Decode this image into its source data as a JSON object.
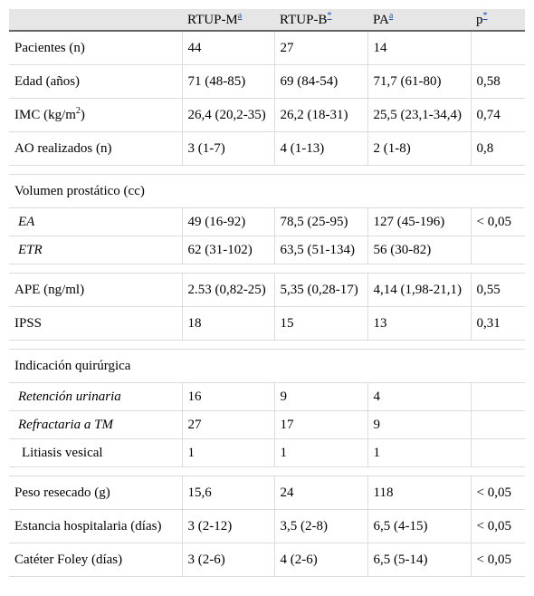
{
  "header": {
    "col1": "",
    "col2": "RTUP-M",
    "col2_note": "a",
    "col3": "RTUP-B",
    "col3_note": "*",
    "col4": "PA",
    "col4_note": "a",
    "col5": "p",
    "col5_note": "*"
  },
  "rows": {
    "pacientes": {
      "label": "Pacientes (n)",
      "m": "44",
      "b": "27",
      "pa": "14",
      "p": ""
    },
    "edad": {
      "label": "Edad (años)",
      "m": "71 (48-85)",
      "b": "69 (84-54)",
      "pa": "71,7 (61-80)",
      "p": "0,58"
    },
    "imc": {
      "label": "IMC (kg/m",
      "label_sup": "2",
      "label_end": ")",
      "m": "26,4 (20,2-35)",
      "b": "26,2 (18-31)",
      "pa": "25,5 (23,1-34,4)",
      "p": "0,74"
    },
    "ao": {
      "label": "AO realizados (n)",
      "m": "3 (1-7)",
      "b": "4 (1-13)",
      "pa": "2 (1-8)",
      "p": "0,8"
    },
    "volumen_title": "Volumen prostático (cc)",
    "ea": {
      "label": "EA",
      "m": "49 (16-92)",
      "b": "78,5 (25-95)",
      "pa": "127 (45-196)",
      "p": "< 0,05"
    },
    "etr": {
      "label": "ETR",
      "m": "62 (31-102)",
      "b": "63,5 (51-134)",
      "pa": "56 (30-82)",
      "p": ""
    },
    "ape": {
      "label": "APE (ng/ml)",
      "m": "2.53 (0,82-25)",
      "b": "5,35 (0,28-17)",
      "pa": "4,14 (1,98-21,1)",
      "p": "0,55"
    },
    "ipss": {
      "label": "IPSS",
      "m": "18",
      "b": "15",
      "pa": "13",
      "p": "0,31"
    },
    "indicacion_title": "Indicación quirúrgica",
    "retencion": {
      "label": "Retención urinaria",
      "m": "16",
      "b": "9",
      "pa": "4",
      "p": ""
    },
    "refractaria": {
      "label": "Refractaria a TM",
      "m": "27",
      "b": "17",
      "pa": "9",
      "p": ""
    },
    "litiasis": {
      "label": "Litiasis vesical",
      "m": "1",
      "b": "1",
      "pa": "1",
      "p": ""
    },
    "peso": {
      "label": "Peso resecado (g)",
      "m": "15,6",
      "b": "24",
      "pa": "118",
      "p": "< 0,05"
    },
    "estancia": {
      "label": "Estancia hospitalaria (días)",
      "m": "3 (2-12)",
      "b": "3,5 (2-8)",
      "pa": "6,5 (4-15)",
      "p": "< 0,05"
    },
    "foley": {
      "label": "Catéter Foley (días)",
      "m": "3 (2-6)",
      "b": "4 (2-6)",
      "pa": "6,5 (5-14)",
      "p": "< 0,05"
    }
  }
}
